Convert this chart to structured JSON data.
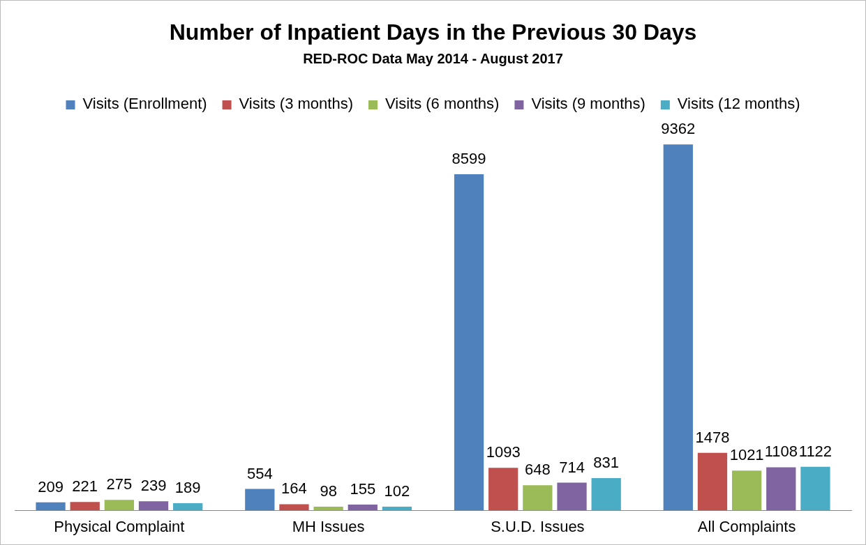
{
  "chart_data": {
    "type": "bar",
    "title": "Number of Inpatient Days in the Previous 30 Days",
    "subtitle": "RED-ROC Data May 2014 - August 2017",
    "categories": [
      "Physical Complaint",
      "MH Issues",
      "S.U.D. Issues",
      "All Complaints"
    ],
    "series": [
      {
        "name": "Visits (Enrollment)",
        "color": "#4f81bd",
        "values": [
          209,
          554,
          8599,
          9362
        ]
      },
      {
        "name": "Visits (3 months)",
        "color": "#c0504d",
        "values": [
          221,
          164,
          1093,
          1478
        ]
      },
      {
        "name": "Visits (6 months)",
        "color": "#9bbb59",
        "values": [
          275,
          98,
          648,
          1021
        ]
      },
      {
        "name": "Visits (9 months)",
        "color": "#8064a2",
        "values": [
          239,
          155,
          714,
          1108
        ]
      },
      {
        "name": "Visits (12 months)",
        "color": "#4bacc6",
        "values": [
          189,
          102,
          831,
          1122
        ]
      }
    ],
    "data_labels": true,
    "legend": "top",
    "grid": false,
    "tick_labels": "x"
  }
}
